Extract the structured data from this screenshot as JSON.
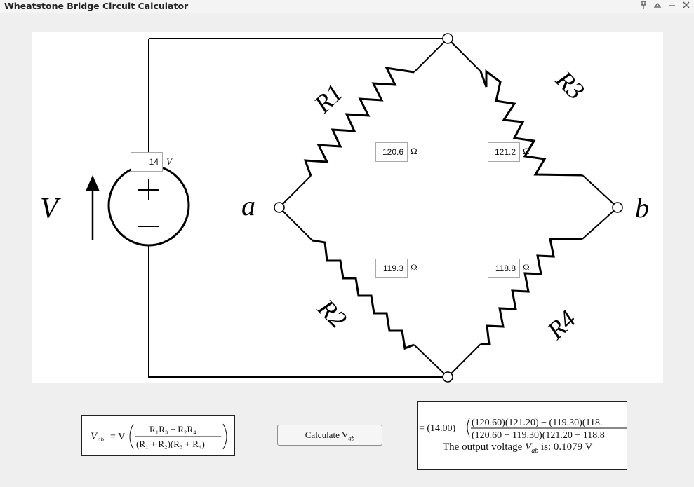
{
  "window": {
    "title": "Wheatstone Bridge Circuit Calculator",
    "controls": [
      "pin-icon",
      "shade-icon",
      "minimize-icon",
      "close-icon"
    ]
  },
  "circuit": {
    "source_label": "V",
    "node_a": "a",
    "node_b": "b",
    "resistor_labels": {
      "r1": "R1",
      "r2": "R2",
      "r3": "R3",
      "r4": "R4"
    },
    "plus_sign": "+",
    "minus_sign": "−",
    "voltage": {
      "value": "14",
      "unit": "V"
    },
    "r1": {
      "value": "120.6",
      "unit": "Ω"
    },
    "r2": {
      "value": "119.3",
      "unit": "Ω"
    },
    "r3": {
      "value": "121.2",
      "unit": "Ω"
    },
    "r4": {
      "value": "118.8",
      "unit": "Ω"
    }
  },
  "formula": {
    "lhs": "V",
    "lhs_sub": "ab",
    "equals": "= V",
    "numerator": "R₁R₃ − R₂R₄",
    "denominator": "(R₁ + R₂)(R₃ + R₄)"
  },
  "button": {
    "label": "Calculate V",
    "label_sub": "ab"
  },
  "result": {
    "prefix": "= (14.00)",
    "numerator": "(120.60)(121.20) − (119.30)(118.",
    "denominator": "(120.60 + 119.30)(121.20 + 118.8",
    "output_prefix": "The output voltage ",
    "output_var": "V",
    "output_sub": "ab",
    "output_suffix": " is: 0.1079 V"
  }
}
